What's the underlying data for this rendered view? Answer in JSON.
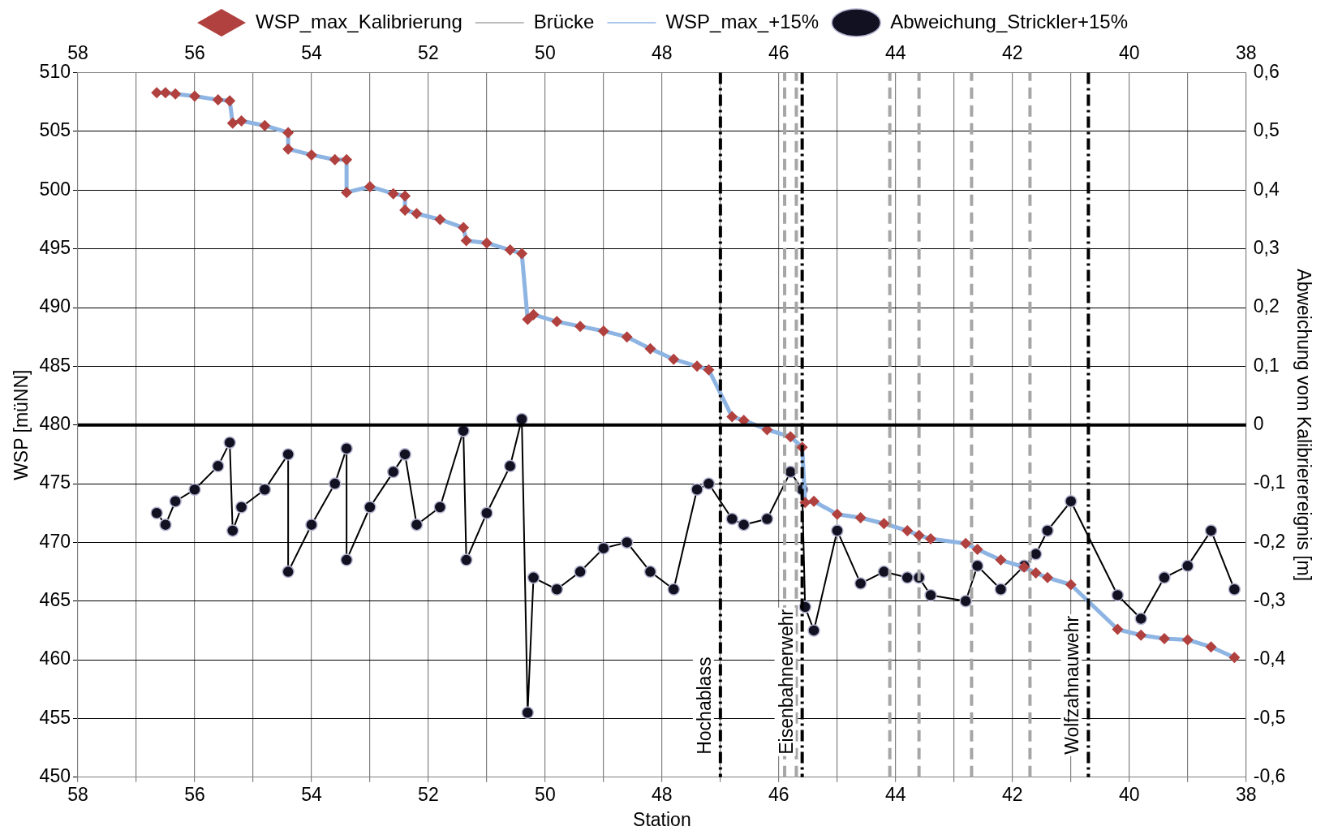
{
  "chart_data": {
    "type": "line",
    "xlabel": "Station",
    "ylabel": "WSP [müNN]",
    "y2label": "Abweichung vom Kalibrierereignis [m]",
    "x": [
      56.65,
      56.5,
      56.33,
      56.0,
      55.6,
      55.4,
      55.35,
      55.2,
      54.8,
      54.4,
      54.4,
      54.0,
      53.6,
      53.4,
      53.4,
      53.0,
      52.6,
      52.4,
      52.4,
      52.2,
      51.8,
      51.4,
      51.35,
      51.0,
      50.6,
      50.4,
      50.3,
      50.2,
      49.8,
      49.4,
      49.0,
      48.6,
      48.2,
      47.8,
      47.4,
      47.2,
      46.8,
      46.6,
      46.2,
      45.8,
      45.6,
      45.55,
      45.4,
      45.0,
      44.6,
      44.2,
      43.8,
      43.6,
      43.4,
      42.8,
      42.6,
      42.2,
      41.8,
      41.6,
      41.4,
      41.0,
      40.2,
      39.8,
      39.4,
      39.0,
      38.6,
      38.2
    ],
    "series": [
      {
        "name": "WSP_max_Kalibrierung",
        "type": "scatter",
        "marker": "diamond",
        "color": "#b0413e",
        "values": [
          508.3,
          508.3,
          508.2,
          508.0,
          507.7,
          507.6,
          505.7,
          505.9,
          505.5,
          504.9,
          503.5,
          503.0,
          502.6,
          502.6,
          499.8,
          500.3,
          499.7,
          499.5,
          498.3,
          498.0,
          497.5,
          496.8,
          495.7,
          495.5,
          494.9,
          494.6,
          489.0,
          489.4,
          488.8,
          488.4,
          488.0,
          487.5,
          486.5,
          485.6,
          485.0,
          484.7,
          480.7,
          480.4,
          479.6,
          479.0,
          478.1,
          473.4,
          473.5,
          472.4,
          472.1,
          471.6,
          471.0,
          470.6,
          470.3,
          469.9,
          469.4,
          468.5,
          467.9,
          467.4,
          467.0,
          466.4,
          462.6,
          462.1,
          461.8,
          461.7,
          461.1,
          460.2
        ]
      },
      {
        "name": "Brücke",
        "line_style": "dashed",
        "color": "#a6a6a6",
        "x": [
          45.9,
          45.9
        ],
        "values": [
          450,
          510
        ]
      },
      {
        "line_style": "dashed",
        "color": "#a6a6a6",
        "x": [
          45.7,
          45.7
        ],
        "values": [
          450,
          510
        ]
      },
      {
        "line_style": "dashed",
        "color": "#a6a6a6",
        "x": [
          44.1,
          44.1
        ],
        "values": [
          450,
          510
        ]
      },
      {
        "line_style": "dashed",
        "color": "#a6a6a6",
        "x": [
          43.6,
          43.6
        ],
        "values": [
          450,
          510
        ]
      },
      {
        "line_style": "dashed",
        "color": "#a6a6a6",
        "x": [
          42.7,
          42.7
        ],
        "values": [
          450,
          510
        ]
      },
      {
        "line_style": "dashed",
        "color": "#a6a6a6",
        "x": [
          41.7,
          41.7
        ],
        "values": [
          450,
          510
        ]
      },
      {
        "name": "WSP_max_+15%",
        "color": "#8db4e2",
        "values": [
          508.3,
          508.3,
          508.2,
          508.0,
          507.7,
          507.6,
          505.7,
          505.9,
          505.5,
          504.9,
          503.5,
          503.0,
          502.6,
          502.6,
          499.8,
          500.3,
          499.7,
          499.5,
          498.3,
          498.0,
          497.5,
          496.8,
          495.7,
          495.5,
          494.9,
          494.6,
          489.0,
          489.4,
          488.8,
          488.4,
          488.0,
          487.5,
          486.5,
          485.6,
          485.0,
          484.7,
          480.7,
          480.4,
          479.6,
          479.0,
          478.1,
          473.4,
          473.5,
          472.4,
          472.1,
          471.6,
          471.0,
          470.6,
          470.3,
          469.9,
          469.4,
          468.5,
          467.9,
          467.4,
          467.0,
          466.4,
          462.6,
          462.1,
          461.8,
          461.7,
          461.1,
          460.2
        ]
      },
      {
        "name": "Abweichung_Strickler+15%",
        "marker": "circle",
        "color": "#000000",
        "axis": "y2",
        "values": [
          -0.15,
          -0.17,
          -0.13,
          -0.11,
          -0.07,
          -0.03,
          -0.18,
          -0.14,
          -0.11,
          -0.05,
          -0.25,
          -0.17,
          -0.1,
          -0.04,
          -0.23,
          -0.14,
          -0.08,
          -0.05,
          -0.05,
          -0.17,
          -0.14,
          -0.01,
          -0.23,
          -0.15,
          -0.07,
          0.01,
          -0.49,
          -0.26,
          -0.28,
          -0.25,
          -0.21,
          -0.2,
          -0.25,
          -0.28,
          -0.11,
          -0.1,
          -0.16,
          -0.17,
          -0.16,
          -0.08,
          -0.11,
          -0.31,
          -0.35,
          -0.18,
          -0.27,
          -0.25,
          -0.26,
          -0.26,
          -0.29,
          -0.3,
          -0.24,
          -0.28,
          -0.24,
          -0.22,
          -0.18,
          -0.13,
          -0.29,
          -0.33,
          -0.26,
          -0.24,
          -0.18,
          -0.28
        ]
      }
    ],
    "xlim": [
      58,
      38
    ],
    "xticks": [
      58,
      {
        "value": 57,
        "label": null
      },
      56,
      {
        "value": 55,
        "label": null
      },
      54,
      {
        "value": 53,
        "label": null
      },
      52,
      {
        "value": 51,
        "label": null
      },
      50,
      {
        "value": 49,
        "label": null
      },
      48,
      {
        "value": 47,
        "label": null
      },
      46,
      {
        "value": 45,
        "label": null
      },
      44,
      {
        "value": 43,
        "label": null
      },
      42,
      {
        "value": 41,
        "label": null
      },
      40,
      {
        "value": 39,
        "label": null
      },
      38
    ],
    "x2lim": [
      58,
      38
    ],
    "x2ticks": [
      58,
      56,
      54,
      52,
      50,
      48,
      46,
      44,
      42,
      40,
      38
    ],
    "ylim": [
      450,
      510
    ],
    "yticks": [
      450,
      455,
      460,
      465,
      470,
      475,
      480,
      485,
      490,
      495,
      500,
      505,
      510
    ],
    "y2lim": [
      -0.6,
      0.6
    ],
    "y2ticks": [
      {
        "value": -0.6,
        "label": "-0,6"
      },
      {
        "value": -0.5,
        "label": "-0,5"
      },
      {
        "value": -0.4,
        "label": "-0,4"
      },
      {
        "value": -0.3,
        "label": "-0,3"
      },
      {
        "value": -0.2,
        "label": "-0,2"
      },
      {
        "value": -0.1,
        "label": "-0,1"
      },
      0,
      {
        "value": 0.1,
        "label": "0,1"
      },
      {
        "value": 0.2,
        "label": "0,2"
      },
      {
        "value": 0.3,
        "label": "0,3"
      },
      {
        "value": 0.4,
        "label": "0,4"
      },
      {
        "value": 0.5,
        "label": "0,5"
      },
      {
        "value": 0.6,
        "label": "0,6"
      }
    ],
    "ref_lines": [
      {
        "axis": "y2",
        "value": 0,
        "label": null,
        "color": "#000000",
        "line_style": "solid"
      },
      {
        "axis": "x",
        "value": 47.0,
        "label": "Hochablass",
        "color": "#000000",
        "line_style": "dashed"
      },
      {
        "axis": "x",
        "value": 45.6,
        "label": "Eisenbahnerwehr",
        "color": "#000000",
        "line_style": "dashed"
      },
      {
        "axis": "x",
        "value": 40.7,
        "label": "Wolfzahnauwehr",
        "color": "#000000",
        "line_style": "dashed"
      }
    ],
    "grid": true,
    "legend": "top"
  }
}
